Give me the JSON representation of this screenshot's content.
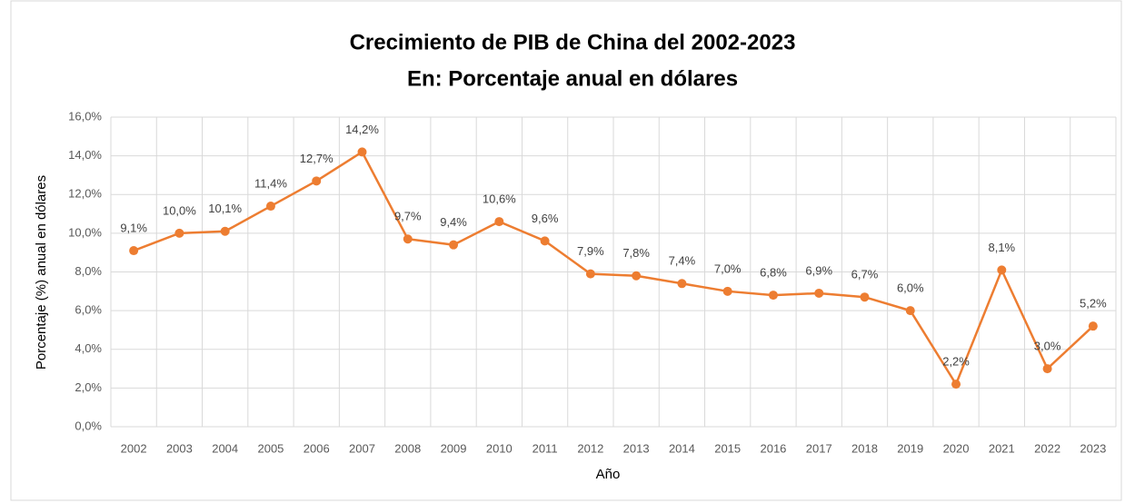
{
  "chart_data": {
    "type": "line",
    "title": "Crecimiento de PIB de China del 2002-2023",
    "subtitle": "En: Porcentaje anual en dólares",
    "x_label": "Año",
    "y_label": "Porcentaje (%) anual en dólares",
    "categories": [
      "2002",
      "2003",
      "2004",
      "2005",
      "2006",
      "2007",
      "2008",
      "2009",
      "2010",
      "2011",
      "2012",
      "2013",
      "2014",
      "2015",
      "2016",
      "2017",
      "2018",
      "2019",
      "2020",
      "2021",
      "2022",
      "2023"
    ],
    "series": [
      {
        "name": "Crecimiento de PIB",
        "color": "#ed7d31",
        "values": [
          9.1,
          10.0,
          10.1,
          11.4,
          12.7,
          14.2,
          9.7,
          9.4,
          10.6,
          9.6,
          7.9,
          7.8,
          7.4,
          7.0,
          6.8,
          6.9,
          6.7,
          6.0,
          2.2,
          8.1,
          3.0,
          5.2
        ],
        "value_labels": [
          "9,1%",
          "10,0%",
          "10,1%",
          "11,4%",
          "12,7%",
          "14,2%",
          "9,7%",
          "9,4%",
          "10,6%",
          "9,6%",
          "7,9%",
          "7,8%",
          "7,4%",
          "7,0%",
          "6,8%",
          "6,9%",
          "6,7%",
          "6,0%",
          "2,2%",
          "8,1%",
          "3,0%",
          "5,2%"
        ]
      }
    ],
    "ylim": [
      0,
      16
    ],
    "yticks": [
      {
        "value": 0,
        "label": "0,0%"
      },
      {
        "value": 2,
        "label": "2,0%"
      },
      {
        "value": 4,
        "label": "4,0%"
      },
      {
        "value": 6,
        "label": "6,0%"
      },
      {
        "value": 8,
        "label": "8,0%"
      },
      {
        "value": 10,
        "label": "10,0%"
      },
      {
        "value": 12,
        "label": "12,0%"
      },
      {
        "value": 14,
        "label": "14,0%"
      },
      {
        "value": 16,
        "label": "16,0%"
      }
    ],
    "grid": true
  }
}
